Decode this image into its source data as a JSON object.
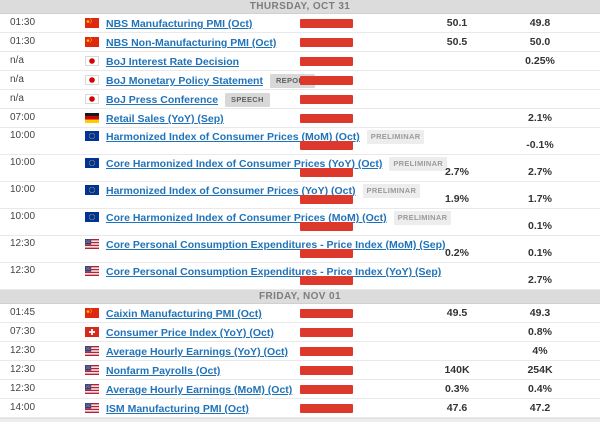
{
  "importance_color": "#dc392c",
  "importance_level": "high",
  "sections": [
    {
      "date_label": "THURSDAY, OCT 31",
      "rows": [
        {
          "time": "01:30",
          "country": "china",
          "event": "NBS Manufacturing PMI (Oct)",
          "badge": "",
          "badge_style": "",
          "forecast": "50.1",
          "previous": "49.8",
          "tall": false
        },
        {
          "time": "01:30",
          "country": "china",
          "event": "NBS Non-Manufacturing PMI (Oct)",
          "badge": "",
          "badge_style": "",
          "forecast": "50.5",
          "previous": "50.0",
          "tall": false
        },
        {
          "time": "n/a",
          "country": "japan",
          "event": "BoJ Interest Rate Decision",
          "badge": "",
          "badge_style": "",
          "forecast": "",
          "previous": "0.25%",
          "tall": false
        },
        {
          "time": "n/a",
          "country": "japan",
          "event": "BoJ Monetary Policy Statement",
          "badge": "REPORT",
          "badge_style": "gray",
          "forecast": "",
          "previous": "",
          "tall": false
        },
        {
          "time": "n/a",
          "country": "japan",
          "event": "BoJ Press Conference",
          "badge": "SPEECH",
          "badge_style": "gray",
          "forecast": "",
          "previous": "",
          "tall": false
        },
        {
          "time": "07:00",
          "country": "germany",
          "event": "Retail Sales (YoY) (Sep)",
          "badge": "",
          "badge_style": "",
          "forecast": "",
          "previous": "2.1%",
          "tall": false
        },
        {
          "time": "10:00",
          "country": "european-union",
          "event": "Harmonized Index of Consumer Prices (MoM) (Oct)",
          "badge": "PRELIMINAR",
          "badge_style": "light",
          "forecast": "",
          "previous": "-0.1%",
          "tall": true
        },
        {
          "time": "10:00",
          "country": "european-union",
          "event": "Core Harmonized Index of Consumer Prices (YoY) (Oct)",
          "badge": "PRELIMINAR",
          "badge_style": "light",
          "forecast": "2.7%",
          "previous": "2.7%",
          "tall": true
        },
        {
          "time": "10:00",
          "country": "european-union",
          "event": "Harmonized Index of Consumer Prices (YoY) (Oct)",
          "badge": "PRELIMINAR",
          "badge_style": "light",
          "forecast": "1.9%",
          "previous": "1.7%",
          "tall": true
        },
        {
          "time": "10:00",
          "country": "european-union",
          "event": "Core Harmonized Index of Consumer Prices (MoM) (Oct)",
          "badge": "PRELIMINAR",
          "badge_style": "light",
          "forecast": "",
          "previous": "0.1%",
          "tall": true
        },
        {
          "time": "12:30",
          "country": "united-states",
          "event": "Core Personal Consumption Expenditures - Price Index (MoM) (Sep)",
          "badge": "",
          "badge_style": "",
          "forecast": "0.2%",
          "previous": "0.1%",
          "tall": true
        },
        {
          "time": "12:30",
          "country": "united-states",
          "event": "Core Personal Consumption Expenditures - Price Index (YoY) (Sep)",
          "badge": "",
          "badge_style": "",
          "forecast": "",
          "previous": "2.7%",
          "tall": true
        }
      ]
    },
    {
      "date_label": "FRIDAY, NOV 01",
      "rows": [
        {
          "time": "01:45",
          "country": "china",
          "event": "Caixin Manufacturing PMI (Oct)",
          "badge": "",
          "badge_style": "",
          "forecast": "49.5",
          "previous": "49.3",
          "tall": false
        },
        {
          "time": "07:30",
          "country": "switzerland",
          "event": "Consumer Price Index (YoY) (Oct)",
          "badge": "",
          "badge_style": "",
          "forecast": "",
          "previous": "0.8%",
          "tall": false
        },
        {
          "time": "12:30",
          "country": "united-states",
          "event": "Average Hourly Earnings (YoY) (Oct)",
          "badge": "",
          "badge_style": "",
          "forecast": "",
          "previous": "4%",
          "tall": false
        },
        {
          "time": "12:30",
          "country": "united-states",
          "event": "Nonfarm Payrolls (Oct)",
          "badge": "",
          "badge_style": "",
          "forecast": "140K",
          "previous": "254K",
          "tall": false
        },
        {
          "time": "12:30",
          "country": "united-states",
          "event": "Average Hourly Earnings (MoM) (Oct)",
          "badge": "",
          "badge_style": "",
          "forecast": "0.3%",
          "previous": "0.4%",
          "tall": false
        },
        {
          "time": "14:00",
          "country": "united-states",
          "event": "ISM Manufacturing PMI (Oct)",
          "badge": "",
          "badge_style": "",
          "forecast": "47.6",
          "previous": "47.2",
          "tall": false
        }
      ]
    }
  ]
}
